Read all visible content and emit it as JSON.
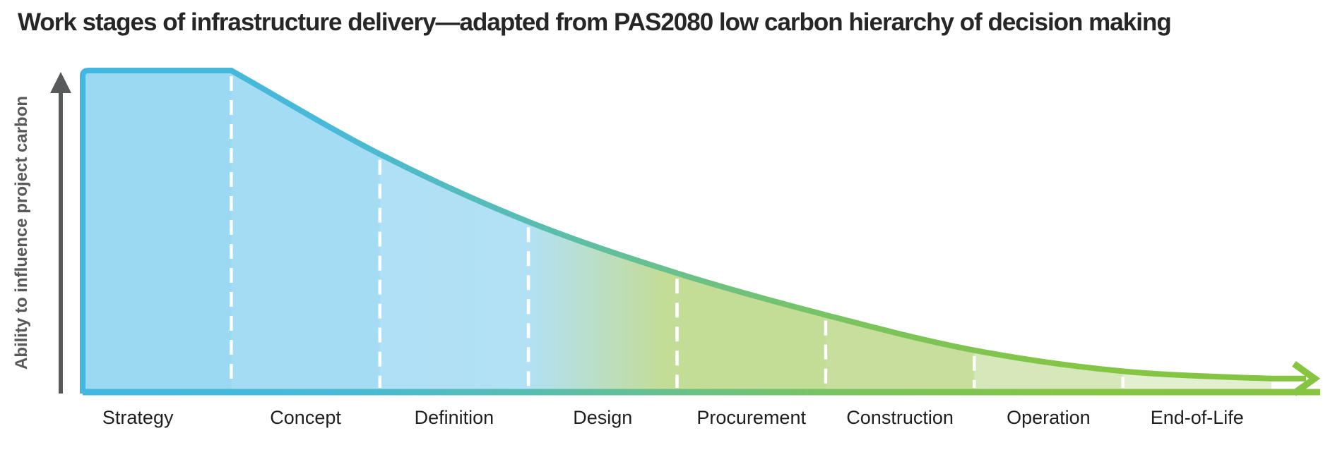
{
  "page": {
    "title": "Work stages of infrastructure delivery—adapted from PAS2080 low carbon hierarchy of decision making"
  },
  "colors": {
    "background": "#ffffff",
    "title_text": "#262626",
    "axis_arrow_gray": "#58595b",
    "stage_label_text": "#1f1f1f",
    "divider_white": "#ffffff",
    "curve_blue": "#43b7e0",
    "curve_teal": "#57bdb2",
    "curve_green": "#86c441"
  },
  "chart_data": {
    "type": "area",
    "title": "Work stages of infrastructure delivery—adapted from PAS2080 low carbon hierarchy of decision making",
    "xlabel": "",
    "ylabel": "Ability to influence project carbon",
    "categories": [
      "Strategy",
      "Concept",
      "Definition",
      "Design",
      "Procurement",
      "Construction",
      "Operation",
      "End-of-Life"
    ],
    "series": [
      {
        "name": "Ability to influence project carbon",
        "boundary_values_pct": [
          100,
          100,
          74,
          53,
          37,
          24,
          13,
          6.5,
          4.2
        ]
      }
    ],
    "ylim": [
      0,
      100
    ],
    "grid": false,
    "legend": false,
    "stage_divider_style": "white dashed vertical lines at each stage boundary",
    "x_axis_style": "green arrow pointing right",
    "y_axis_style": "dark gray arrow pointing up",
    "style": {
      "fill_stops": [
        [
          0.0,
          "#9bd9f2"
        ],
        [
          0.124,
          "#9bd9f2"
        ],
        [
          0.126,
          "#a3dcf3"
        ],
        [
          0.249,
          "#a3dcf3"
        ],
        [
          0.251,
          "#b0e0f5"
        ],
        [
          0.375,
          "#b2e1f5"
        ],
        [
          0.49,
          "#c3dc96"
        ],
        [
          0.624,
          "#c3dc96"
        ],
        [
          0.626,
          "#c7de9d"
        ],
        [
          0.749,
          "#c7de9d"
        ],
        [
          0.751,
          "#d6e7b9"
        ],
        [
          0.874,
          "#d6e7b9"
        ],
        [
          0.876,
          "#e3efd1"
        ],
        [
          1.0,
          "#e3efd1"
        ]
      ],
      "stroke_stops": [
        [
          0.0,
          "#43b7e0"
        ],
        [
          0.2,
          "#48b9d8"
        ],
        [
          0.36,
          "#57bdb2"
        ],
        [
          0.5,
          "#6cc184"
        ],
        [
          0.62,
          "#79c45e"
        ],
        [
          0.8,
          "#83c545"
        ],
        [
          1.0,
          "#86c441"
        ]
      ]
    }
  }
}
